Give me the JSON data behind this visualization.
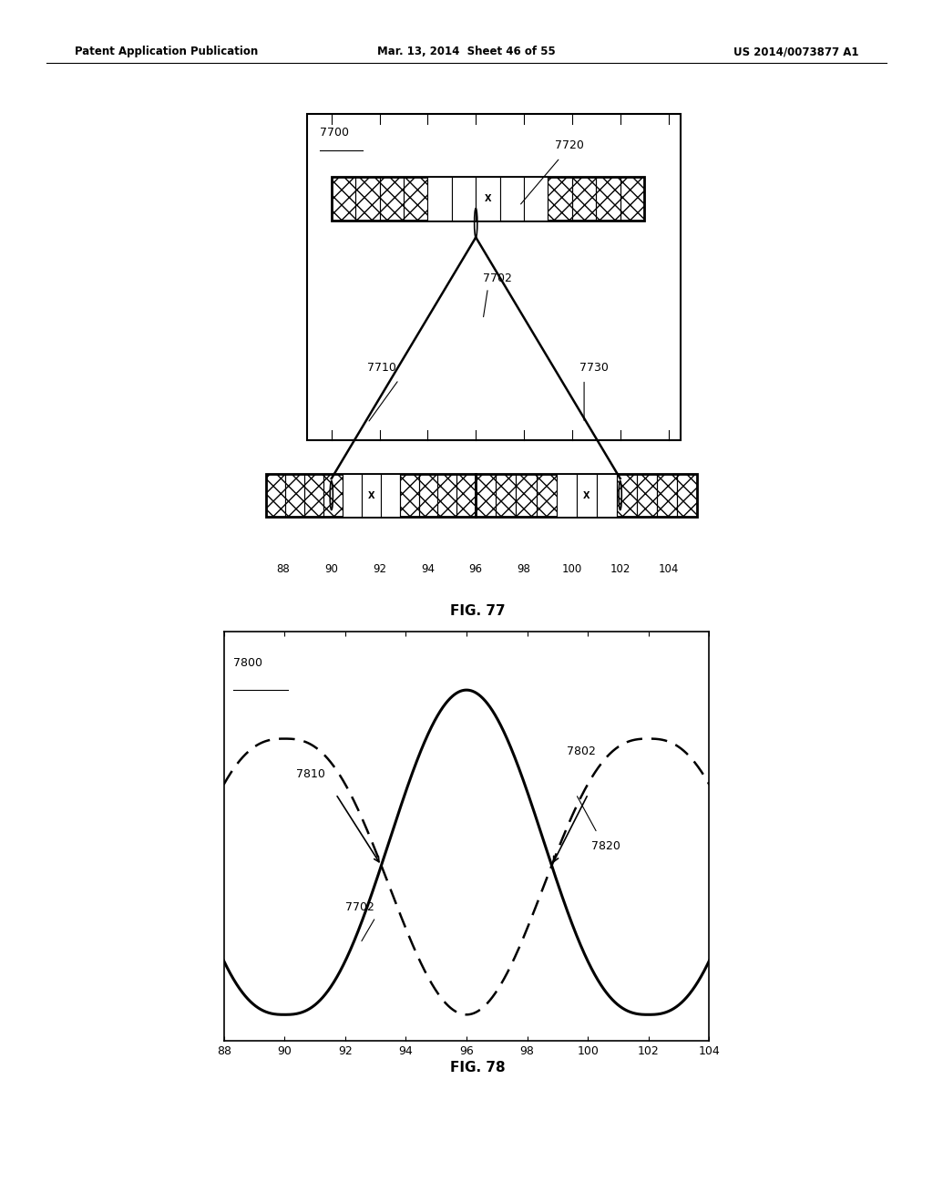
{
  "header_left": "Patent Application Publication",
  "header_mid": "Mar. 13, 2014  Sheet 46 of 55",
  "header_right": "US 2014/0073877 A1",
  "fig77_title": "FIG. 77",
  "fig78_title": "FIG. 78",
  "fig77_label": "7700",
  "fig77_label_7720": "7720",
  "fig77_label_7702": "7702",
  "fig77_label_7710": "7710",
  "fig77_label_7730": "7730",
  "fig78_label": "7800",
  "fig78_label_7802": "7802",
  "fig78_label_7810": "7810",
  "fig78_label_7820": "7820",
  "fig78_label_7702": "7702",
  "xticks": [
    88,
    90,
    92,
    94,
    96,
    98,
    100,
    102,
    104
  ],
  "background": "#ffffff"
}
